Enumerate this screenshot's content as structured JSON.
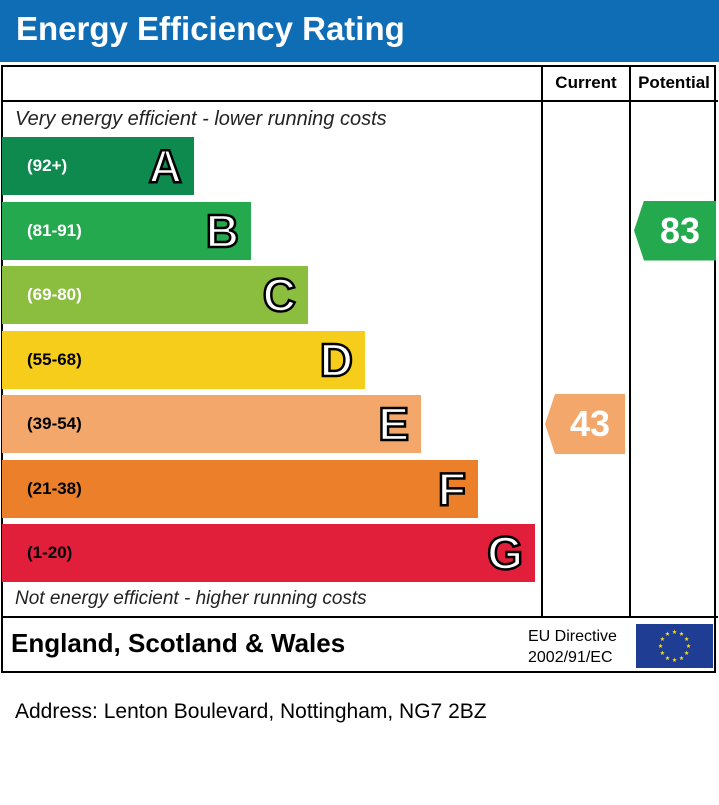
{
  "title": "Energy Efficiency Rating",
  "columns": {
    "current": "Current",
    "potential": "Potential"
  },
  "top_note": "Very energy efficient - lower running costs",
  "bottom_note": "Not energy efficient - higher running costs",
  "chart_data": {
    "type": "bar",
    "bands": [
      {
        "letter": "A",
        "range": "(92+)",
        "color": "#0f8a4e",
        "text_color": "#ffffff"
      },
      {
        "letter": "B",
        "range": "(81-91)",
        "color": "#25a94e",
        "text_color": "#ffffff"
      },
      {
        "letter": "C",
        "range": "(69-80)",
        "color": "#8bbd3f",
        "text_color": "#ffffff"
      },
      {
        "letter": "D",
        "range": "(55-68)",
        "color": "#f6cd1b",
        "text_color": "#000000"
      },
      {
        "letter": "E",
        "range": "(39-54)",
        "color": "#f3a76a",
        "text_color": "#000000"
      },
      {
        "letter": "F",
        "range": "(21-38)",
        "color": "#ec7f29",
        "text_color": "#000000"
      },
      {
        "letter": "G",
        "range": "(1-20)",
        "color": "#e21f3b",
        "text_color": "#000000"
      }
    ],
    "current": {
      "value": 43,
      "band": "E",
      "color": "#f3a76a"
    },
    "potential": {
      "value": 83,
      "band": "B",
      "color": "#25a94e"
    }
  },
  "footer": {
    "country": "England, Scotland & Wales",
    "eu_line1": "EU Directive",
    "eu_line2": "2002/91/EC",
    "flag_color": "#1f3e93",
    "star_color": "#ffde00"
  },
  "address": "Address: Lenton Boulevard, Nottingham, NG7 2BZ"
}
